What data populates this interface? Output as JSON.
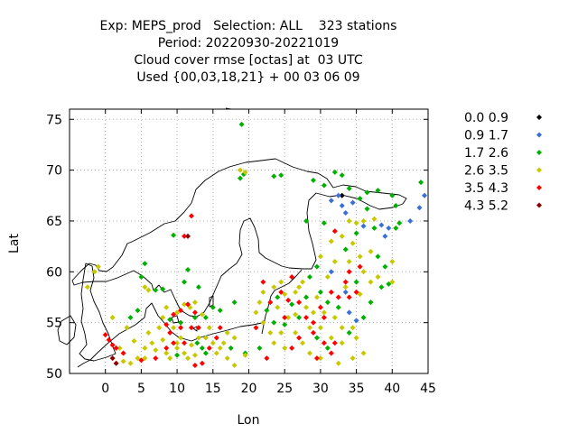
{
  "chart_data": {
    "type": "scatter",
    "title_lines": [
      "Exp: MEPS_prod   Selection: ALL    323 stations",
      "Period: 20220930-20221019",
      "Cloud cover rmse [octas] at  03 UTC",
      "Used {00,03,18,21} + 00 03 06 09"
    ],
    "xlabel": "Lon",
    "ylabel": "Lat",
    "xlim": [
      -5,
      45
    ],
    "ylim": [
      50,
      76
    ],
    "xticks": [
      0,
      5,
      10,
      15,
      20,
      25,
      30,
      35,
      40,
      45
    ],
    "yticks": [
      50,
      55,
      60,
      65,
      70,
      75
    ],
    "grid": true,
    "legend_position": "right",
    "series": [
      {
        "name": "0.0 0.9",
        "color": "#000000",
        "points": [
          [
            33.0,
            67.5
          ]
        ]
      },
      {
        "name": "0.9 1.7",
        "color": "#3b6fd6",
        "points": [
          [
            31.5,
            67.0
          ],
          [
            32.5,
            67.5
          ],
          [
            33.0,
            66.5
          ],
          [
            33.5,
            65.8
          ],
          [
            34.5,
            66.8
          ],
          [
            36.0,
            64.5
          ],
          [
            38.5,
            64.6
          ],
          [
            39.5,
            64.3
          ],
          [
            39.0,
            63.5
          ],
          [
            42.5,
            65.0
          ],
          [
            43.8,
            66.3
          ],
          [
            44.5,
            67.5
          ],
          [
            31.5,
            60.0
          ],
          [
            33.5,
            58.0
          ],
          [
            34.0,
            56.0
          ],
          [
            35.0,
            55.2
          ]
        ]
      },
      {
        "name": "1.7 2.6",
        "color": "#00b000",
        "points": [
          [
            19.0,
            74.5
          ],
          [
            18.8,
            69.2
          ],
          [
            19.3,
            69.6
          ],
          [
            23.5,
            69.4
          ],
          [
            24.5,
            69.5
          ],
          [
            29.0,
            69.0
          ],
          [
            30.5,
            68.5
          ],
          [
            32.0,
            69.8
          ],
          [
            33.0,
            69.5
          ],
          [
            34.0,
            68.2
          ],
          [
            35.5,
            67.2
          ],
          [
            36.5,
            67.8
          ],
          [
            38.0,
            68.0
          ],
          [
            36.5,
            66.2
          ],
          [
            40.0,
            67.5
          ],
          [
            40.5,
            66.5
          ],
          [
            41.0,
            64.8
          ],
          [
            40.5,
            64.3
          ],
          [
            37.5,
            64.3
          ],
          [
            30.5,
            64.8
          ],
          [
            28.0,
            65.0
          ],
          [
            44.0,
            68.8
          ],
          [
            9.5,
            63.6
          ],
          [
            5.5,
            60.8
          ],
          [
            5.0,
            59.5
          ],
          [
            7.0,
            58.2
          ],
          [
            8.0,
            58.3
          ],
          [
            11.5,
            60.2
          ],
          [
            11.0,
            59.0
          ],
          [
            13.0,
            58.5
          ],
          [
            15.0,
            56.5
          ],
          [
            16.0,
            56.2
          ],
          [
            18.0,
            57.0
          ],
          [
            14.0,
            55.5
          ],
          [
            4.5,
            56.2
          ],
          [
            3.5,
            55.5
          ],
          [
            9.0,
            55.3
          ],
          [
            10.5,
            55.0
          ],
          [
            12.5,
            55.5
          ],
          [
            12.8,
            53.0
          ],
          [
            13.5,
            52.5
          ],
          [
            14.0,
            52.0
          ],
          [
            10.0,
            51.8
          ],
          [
            24.0,
            57.5
          ],
          [
            22.5,
            56.2
          ],
          [
            26.0,
            56.8
          ],
          [
            28.0,
            57.5
          ],
          [
            30.0,
            58.0
          ],
          [
            31.0,
            57.0
          ],
          [
            32.5,
            56.5
          ],
          [
            27.0,
            55.5
          ],
          [
            25.0,
            54.8
          ],
          [
            23.5,
            55.0
          ],
          [
            29.5,
            53.5
          ],
          [
            31.0,
            52.5
          ],
          [
            34.0,
            54.0
          ],
          [
            36.0,
            55.5
          ],
          [
            37.0,
            57.0
          ],
          [
            35.0,
            59.0
          ],
          [
            38.5,
            58.5
          ],
          [
            39.0,
            60.5
          ],
          [
            28.5,
            59.5
          ],
          [
            29.5,
            60.5
          ],
          [
            35.0,
            63.8
          ],
          [
            33.5,
            62.2
          ],
          [
            38.0,
            61.5
          ],
          [
            39.5,
            58.8
          ],
          [
            21.5,
            52.5
          ],
          [
            19.5,
            52.0
          ],
          [
            17.5,
            52.5
          ]
        ]
      },
      {
        "name": "2.6 3.5",
        "color": "#c8c800",
        "points": [
          [
            18.8,
            70.0
          ],
          [
            19.5,
            69.8
          ],
          [
            34.0,
            65.0
          ],
          [
            35.0,
            64.8
          ],
          [
            36.0,
            65.0
          ],
          [
            37.5,
            65.2
          ],
          [
            34.5,
            62.8
          ],
          [
            33.0,
            63.5
          ],
          [
            31.5,
            63.0
          ],
          [
            35.5,
            61.5
          ],
          [
            37.0,
            62.0
          ],
          [
            34.0,
            61.0
          ],
          [
            36.0,
            60.0
          ],
          [
            38.0,
            59.5
          ],
          [
            40.0,
            59.0
          ],
          [
            37.0,
            59.0
          ],
          [
            35.5,
            57.8
          ],
          [
            40.0,
            61.0
          ],
          [
            -2.5,
            58.5
          ],
          [
            -1.5,
            60.0
          ],
          [
            -1.0,
            60.5
          ],
          [
            5.5,
            58.5
          ],
          [
            6.0,
            58.2
          ],
          [
            1.0,
            55.5
          ],
          [
            3.0,
            54.5
          ],
          [
            4.0,
            53.2
          ],
          [
            2.0,
            52.5
          ],
          [
            5.5,
            52.5
          ],
          [
            6.5,
            53.0
          ],
          [
            7.0,
            52.3
          ],
          [
            8.0,
            53.3
          ],
          [
            8.5,
            52.0
          ],
          [
            9.0,
            51.5
          ],
          [
            10.0,
            52.5
          ],
          [
            10.5,
            53.5
          ],
          [
            11.0,
            52.0
          ],
          [
            11.5,
            51.5
          ],
          [
            12.0,
            52.8
          ],
          [
            12.5,
            51.8
          ],
          [
            13.0,
            53.5
          ],
          [
            14.0,
            53.5
          ],
          [
            15.0,
            53.0
          ],
          [
            15.5,
            52.0
          ],
          [
            16.5,
            53.0
          ],
          [
            17.0,
            54.0
          ],
          [
            18.0,
            53.5
          ],
          [
            14.5,
            54.5
          ],
          [
            13.5,
            55.8
          ],
          [
            11.8,
            56.5
          ],
          [
            12.5,
            57.0
          ],
          [
            11.0,
            56.8
          ],
          [
            10.0,
            56.0
          ],
          [
            8.5,
            56.5
          ],
          [
            8.0,
            55.5
          ],
          [
            9.5,
            54.5
          ],
          [
            10.0,
            53.0
          ],
          [
            7.5,
            54.5
          ],
          [
            6.0,
            54.0
          ],
          [
            5.5,
            51.5
          ],
          [
            4.5,
            51.5
          ],
          [
            3.5,
            51.0
          ],
          [
            2.5,
            51.2
          ],
          [
            18.0,
            50.8
          ],
          [
            21.0,
            56.0
          ],
          [
            21.5,
            57.0
          ],
          [
            22.0,
            58.0
          ],
          [
            23.5,
            58.5
          ],
          [
            24.5,
            59.0
          ],
          [
            25.0,
            57.8
          ],
          [
            26.5,
            58.0
          ],
          [
            27.0,
            58.5
          ],
          [
            28.0,
            56.5
          ],
          [
            29.0,
            56.0
          ],
          [
            30.5,
            56.0
          ],
          [
            32.0,
            55.5
          ],
          [
            33.0,
            54.5
          ],
          [
            34.5,
            54.5
          ],
          [
            35.0,
            53.5
          ],
          [
            33.0,
            53.0
          ],
          [
            31.5,
            53.5
          ],
          [
            30.0,
            54.5
          ],
          [
            28.5,
            54.5
          ],
          [
            26.5,
            54.0
          ],
          [
            24.5,
            54.0
          ],
          [
            23.0,
            54.0
          ],
          [
            22.0,
            55.0
          ],
          [
            26.5,
            55.8
          ],
          [
            25.5,
            55.5
          ],
          [
            27.5,
            53.0
          ],
          [
            28.5,
            52.0
          ],
          [
            30.0,
            51.5
          ],
          [
            32.5,
            51.0
          ],
          [
            34.5,
            51.5
          ],
          [
            36.0,
            52.0
          ],
          [
            25.0,
            52.5
          ],
          [
            23.5,
            53.0
          ],
          [
            24.0,
            56.5
          ],
          [
            29.5,
            57.5
          ],
          [
            33.5,
            58.5
          ],
          [
            31.0,
            59.5
          ],
          [
            27.5,
            59.0
          ],
          [
            32.0,
            61.0
          ],
          [
            30.0,
            61.5
          ],
          [
            19.5,
            51.8
          ],
          [
            16.0,
            52.5
          ],
          [
            17.0,
            51.5
          ]
        ]
      },
      {
        "name": "3.5 4.3",
        "color": "#ff0000",
        "points": [
          [
            12.0,
            65.5
          ],
          [
            11.0,
            63.5
          ],
          [
            0.0,
            53.8
          ],
          [
            0.5,
            53.3
          ],
          [
            1.0,
            52.8
          ],
          [
            1.5,
            52.5
          ],
          [
            2.5,
            52.0
          ],
          [
            5.0,
            51.3
          ],
          [
            7.0,
            51.5
          ],
          [
            8.5,
            52.5
          ],
          [
            9.5,
            53.0
          ],
          [
            9.0,
            54.0
          ],
          [
            8.5,
            54.8
          ],
          [
            9.5,
            55.8
          ],
          [
            10.5,
            56.2
          ],
          [
            11.5,
            56.8
          ],
          [
            12.5,
            56.0
          ],
          [
            13.0,
            54.5
          ],
          [
            12.0,
            54.5
          ],
          [
            10.5,
            54.5
          ],
          [
            11.0,
            53.0
          ],
          [
            14.5,
            52.5
          ],
          [
            15.5,
            53.5
          ],
          [
            16.0,
            54.5
          ],
          [
            13.5,
            51.0
          ],
          [
            12.5,
            50.8
          ],
          [
            22.5,
            51.5
          ],
          [
            22.0,
            59.0
          ],
          [
            23.0,
            57.0
          ],
          [
            24.5,
            58.0
          ],
          [
            25.5,
            57.2
          ],
          [
            26.0,
            59.5
          ],
          [
            27.0,
            57.0
          ],
          [
            28.0,
            55.5
          ],
          [
            29.0,
            55.0
          ],
          [
            30.5,
            55.5
          ],
          [
            27.0,
            53.5
          ],
          [
            29.0,
            54.0
          ],
          [
            26.0,
            52.5
          ],
          [
            30.5,
            53.0
          ],
          [
            29.5,
            51.5
          ],
          [
            31.5,
            52.0
          ],
          [
            32.0,
            53.0
          ],
          [
            30.0,
            56.5
          ],
          [
            31.5,
            58.0
          ],
          [
            32.5,
            57.5
          ],
          [
            34.0,
            57.5
          ],
          [
            35.0,
            58.0
          ],
          [
            34.0,
            60.0
          ],
          [
            33.5,
            59.0
          ],
          [
            32.0,
            64.0
          ],
          [
            35.5,
            60.5
          ],
          [
            25.0,
            55.5
          ],
          [
            21.0,
            54.5
          ]
        ]
      },
      {
        "name": "4.3 5.2",
        "color": "#8b0000",
        "points": [
          [
            1.0,
            51.5
          ],
          [
            1.5,
            51.0
          ],
          [
            11.5,
            63.5
          ]
        ]
      }
    ]
  }
}
